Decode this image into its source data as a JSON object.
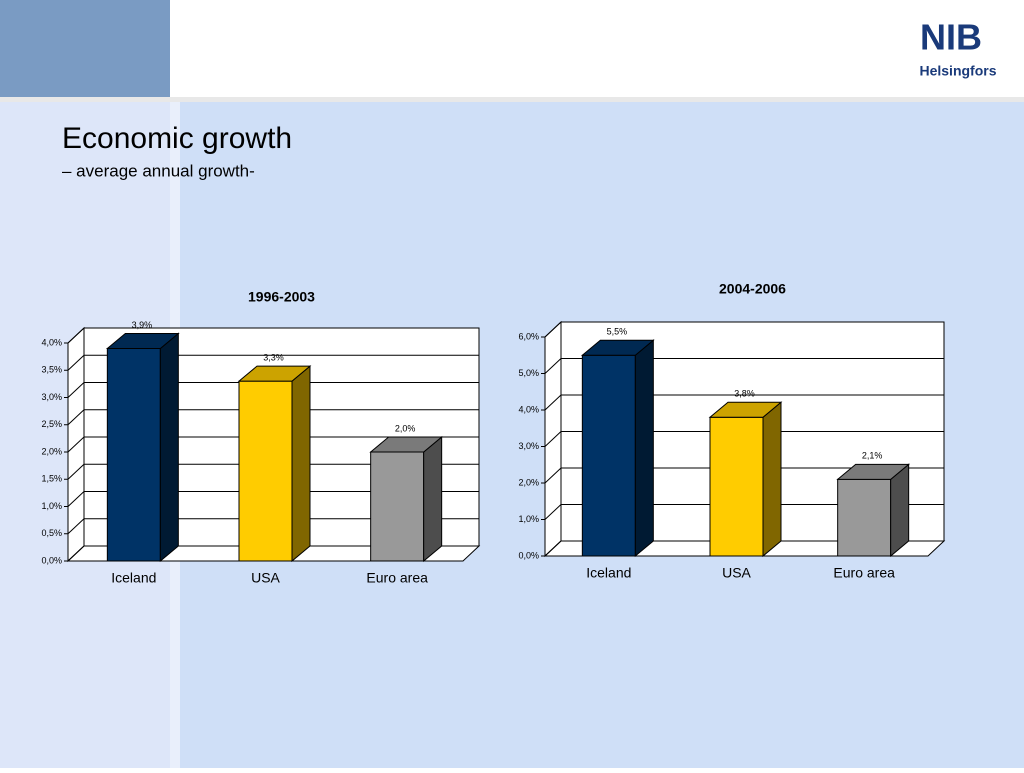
{
  "slide": {
    "title": "Economic growth",
    "subtitle": "– average annual growth-"
  },
  "logo": {
    "brand": "NIB",
    "caption": "Helsingfors"
  },
  "chart_data": [
    {
      "type": "bar3d",
      "title": "1996-2003",
      "categories": [
        "Iceland",
        "USA",
        "Euro area"
      ],
      "values": [
        3.9,
        3.3,
        2.0
      ],
      "value_labels": [
        "3,9%",
        "3,3%",
        "2,0%"
      ],
      "colors": [
        "#003366",
        "#ffcc00",
        "#999999"
      ],
      "ylim": [
        0,
        4
      ],
      "yticks": [
        {
          "value": 0,
          "label": "0,0%"
        },
        {
          "value": 0.5,
          "label": "0,5%"
        },
        {
          "value": 1,
          "label": "1,0%"
        },
        {
          "value": 1.5,
          "label": "1,5%"
        },
        {
          "value": 2,
          "label": "2,0%"
        },
        {
          "value": 2.5,
          "label": "2,5%"
        },
        {
          "value": 3,
          "label": "3,0%"
        },
        {
          "value": 3.5,
          "label": "3,5%"
        },
        {
          "value": 4,
          "label": "4,0%"
        }
      ],
      "grid": true
    },
    {
      "type": "bar3d",
      "title": "2004-2006",
      "categories": [
        "Iceland",
        "USA",
        "Euro area"
      ],
      "values": [
        5.5,
        3.8,
        2.1
      ],
      "value_labels": [
        "5,5%",
        "3,8%",
        "2,1%"
      ],
      "colors": [
        "#003366",
        "#ffcc00",
        "#999999"
      ],
      "ylim": [
        0,
        6
      ],
      "yticks": [
        {
          "value": 0,
          "label": "0,0%"
        },
        {
          "value": 1,
          "label": "1,0%"
        },
        {
          "value": 2,
          "label": "2,0%"
        },
        {
          "value": 3,
          "label": "3,0%"
        },
        {
          "value": 4,
          "label": "4,0%"
        },
        {
          "value": 5,
          "label": "5,0%"
        },
        {
          "value": 6,
          "label": "6,0%"
        }
      ],
      "grid": true
    }
  ]
}
